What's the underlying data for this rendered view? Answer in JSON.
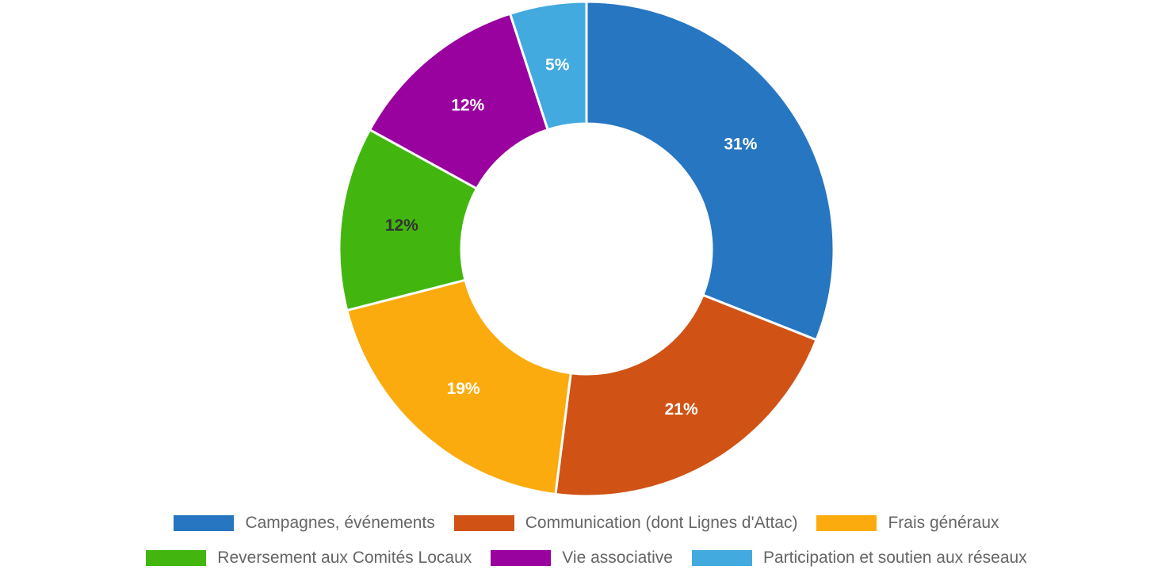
{
  "chart_data": {
    "type": "pie",
    "variant": "donut",
    "title": "",
    "categories": [
      "Campagnes, événements",
      "Communication (dont Lignes d'Attac)",
      "Frais généraux",
      "Reversement aux Comités Locaux",
      "Vie associative",
      "Participation et soutien aux réseaux"
    ],
    "values": [
      31,
      21,
      19,
      12,
      12,
      5
    ],
    "unit": "%",
    "data_labels": [
      "31%",
      "21%",
      "19%",
      "12%",
      "12%",
      "5%"
    ],
    "colors": [
      "#2776C2",
      "#D05315",
      "#FBAB0E",
      "#42B60F",
      "#99029E",
      "#42AADF"
    ],
    "label_colors": [
      "#ffffff",
      "#ffffff",
      "#ffffff",
      "#333333",
      "#ffffff",
      "#ffffff"
    ],
    "legend_position": "bottom"
  },
  "legend": {
    "row1": [
      {
        "label": "Campagnes, événements",
        "color": "#2776C2"
      },
      {
        "label": "Communication (dont Lignes d'Attac)",
        "color": "#D05315"
      },
      {
        "label": "Frais généraux",
        "color": "#FBAB0E"
      }
    ],
    "row2": [
      {
        "label": "Reversement aux Comités Locaux",
        "color": "#42B60F"
      },
      {
        "label": "Vie associative",
        "color": "#99029E"
      },
      {
        "label": "Participation et soutien aux réseaux",
        "color": "#42AADF"
      }
    ]
  }
}
